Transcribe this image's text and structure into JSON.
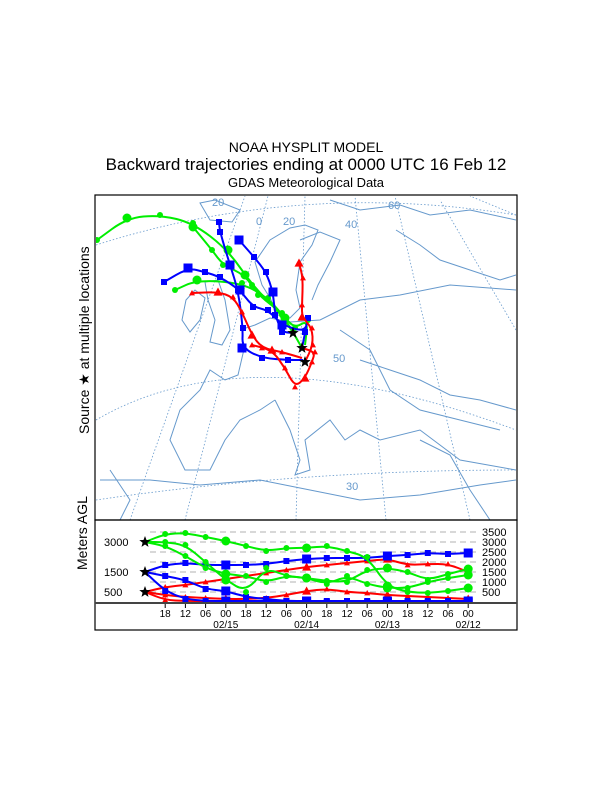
{
  "header": {
    "line1": "NOAA HYSPLIT MODEL",
    "line2": "Backward trajectories ending at 0000 UTC 16 Feb 12",
    "line3": "GDAS Meteorological Data"
  },
  "map": {
    "side_label": "Source ★ at multiple locations",
    "graticule_labels": [
      "20",
      "0",
      "20",
      "40",
      "60",
      "50",
      "30"
    ],
    "source_icon": "star-icon"
  },
  "colors": {
    "low": "#ff0000",
    "mid": "#0000ff",
    "high": "#00ee00",
    "map_lines": "#6699cc"
  },
  "chart_data": {
    "type": "line",
    "ylabel": "Meters AGL",
    "start_heights": [
      "3000",
      "1500",
      "500"
    ],
    "right_ticks": [
      "3500",
      "3000",
      "2500",
      "2000",
      "1500",
      "1000",
      "500"
    ],
    "x_ticks": [
      "18",
      "12",
      "06",
      "00",
      "18",
      "12",
      "06",
      "00",
      "18",
      "12",
      "06",
      "00",
      "18",
      "12",
      "06",
      "00"
    ],
    "date_labels": [
      "02/15",
      "02/14",
      "02/13",
      "02/12"
    ],
    "hours_back_step": 6,
    "series": [
      {
        "name": "red-a",
        "color": "#ff0000",
        "marker": "triangle",
        "values": [
          500,
          750,
          850,
          1000,
          1150,
          1300,
          1450,
          1600,
          1750,
          1850,
          1950,
          2050,
          2150,
          1850,
          1900,
          1900,
          1500
        ]
      },
      {
        "name": "red-b",
        "color": "#ff0000",
        "marker": "triangle",
        "values": [
          500,
          350,
          250,
          200,
          150,
          150,
          200,
          350,
          550,
          650,
          500,
          450,
          350,
          300,
          250,
          200,
          150
        ]
      },
      {
        "name": "red-c",
        "color": "#ff0000",
        "marker": "triangle",
        "values": [
          500,
          100,
          50,
          50,
          50,
          0,
          0,
          0,
          0,
          0,
          0,
          0,
          0,
          0,
          0,
          0,
          0
        ]
      },
      {
        "name": "blue-a",
        "color": "#0000ff",
        "marker": "square",
        "values": [
          1500,
          1850,
          1950,
          1850,
          1850,
          1850,
          1900,
          2050,
          2150,
          2200,
          2200,
          2200,
          2300,
          2350,
          2450,
          2400,
          2450
        ]
      },
      {
        "name": "blue-b",
        "color": "#0000ff",
        "marker": "square",
        "values": [
          1500,
          1300,
          1100,
          650,
          550,
          250,
          150,
          50,
          50,
          0,
          0,
          0,
          0,
          0,
          0,
          0,
          0
        ]
      },
      {
        "name": "blue-c",
        "color": "#0000ff",
        "marker": "square",
        "values": [
          1500,
          550,
          150,
          50,
          50,
          50,
          50,
          50,
          50,
          50,
          50,
          50,
          50,
          50,
          50,
          50,
          50
        ]
      },
      {
        "name": "green-a",
        "color": "#00ee00",
        "marker": "circle",
        "values": [
          3000,
          3400,
          3450,
          3250,
          3050,
          2800,
          2550,
          2700,
          2700,
          2800,
          2550,
          2250,
          800,
          500,
          450,
          550,
          700
        ]
      },
      {
        "name": "green-b",
        "color": "#00ee00",
        "marker": "circle",
        "values": [
          3000,
          3000,
          2850,
          2000,
          1100,
          500,
          1700,
          1300,
          1200,
          1050,
          1000,
          1600,
          1700,
          1500,
          1100,
          1400,
          1650
        ]
      },
      {
        "name": "green-c",
        "color": "#00ee00",
        "marker": "circle",
        "values": [
          3000,
          2800,
          2300,
          1700,
          1400,
          1300,
          1000,
          1300,
          1200,
          900,
          1300,
          900,
          700,
          700,
          1000,
          1200,
          1350
        ]
      }
    ],
    "ylim": [
      0,
      3500
    ]
  }
}
